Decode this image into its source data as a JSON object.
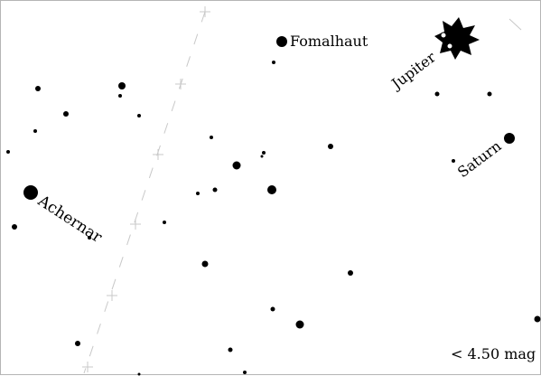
{
  "chart": {
    "background_color": "#ffffff",
    "ink_color": "#000000",
    "ecliptic_color": "#c8c8c8",
    "magnitude_limit_label": "< 4.50 mag"
  },
  "objects": {
    "fomalhaut": {
      "label": "Fomalhaut",
      "kind": "star"
    },
    "achernar": {
      "label": "Achernar",
      "kind": "star"
    },
    "jupiter": {
      "label": "Jupiter",
      "kind": "planet",
      "icon": "starburst-icon"
    },
    "saturn": {
      "label": "Saturn",
      "kind": "planet"
    }
  }
}
